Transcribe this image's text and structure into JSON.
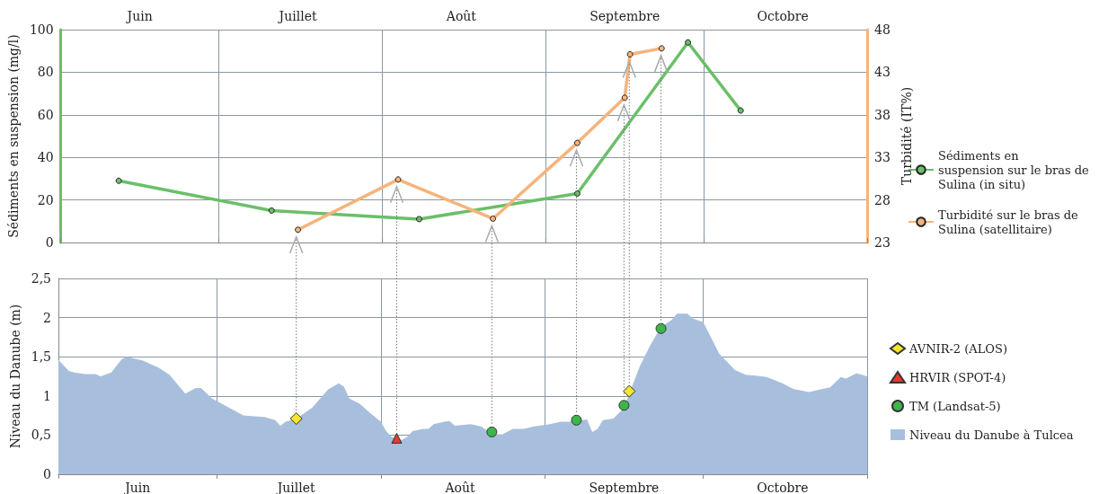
{
  "chart_data": [
    {
      "type": "line",
      "ylabel": "Sédiments en suspension (mg/l)",
      "y2label": "Turbidité (IT%)",
      "xlim": [
        "--06-01",
        "--11-01"
      ],
      "xticks": [
        {
          "value": "--06-01",
          "label": null
        },
        {
          "value": "--06-16",
          "label": "Juin"
        },
        {
          "value": "--07-01",
          "label": null
        },
        {
          "value": "--07-16",
          "label": "Juillet"
        },
        {
          "value": "--08-01",
          "label": null
        },
        {
          "value": "--08-16",
          "label": "Août"
        },
        {
          "value": "--09-01",
          "label": null
        },
        {
          "value": "--09-16",
          "label": "Septembre"
        },
        {
          "value": "--10-01",
          "label": null
        },
        {
          "value": "--10-16",
          "label": "Octobre"
        },
        {
          "value": "--11-01",
          "label": null
        }
      ],
      "ylim": [
        0,
        100
      ],
      "yticks": [
        0,
        20,
        40,
        60,
        80,
        100
      ],
      "y2lim": [
        23,
        48
      ],
      "y2ticks": [
        23,
        28,
        33,
        38,
        43,
        48
      ],
      "grid": true,
      "legend": "right",
      "marker": "circle",
      "series": [
        {
          "name": "Sédiments en suspension sur le bras de Sulina (in situ)",
          "color": "#6abf69",
          "x": [
            "--06-12",
            "--07-11",
            "--08-08",
            "--09-07",
            "--09-28",
            "--10-08"
          ],
          "values": [
            29,
            15,
            11,
            23,
            94,
            62
          ]
        },
        {
          "name": "Turbidité sur le bras de Sulina (satellitaire)",
          "color": "#f5b47c",
          "axis": "y2",
          "x": [
            "--07-16",
            "--08-04",
            "--08-22",
            "--09-07",
            "--09-16",
            "--09-17",
            "--09-23"
          ],
          "values": [
            24.5,
            30.4,
            25.8,
            34.7,
            40.0,
            45.1,
            45.8
          ]
        }
      ]
    },
    {
      "type": "scatter",
      "ylabel": "Niveau du Danube (m)",
      "xlim": [
        "--06-01",
        "--11-01"
      ],
      "xticks": [
        {
          "value": "--06-01",
          "label": null
        },
        {
          "value": "--06-16",
          "label": "Juin"
        },
        {
          "value": "--07-01",
          "label": null
        },
        {
          "value": "--07-16",
          "label": "Juillet"
        },
        {
          "value": "--08-01",
          "label": null
        },
        {
          "value": "--08-16",
          "label": "Août"
        },
        {
          "value": "--09-01",
          "label": null
        },
        {
          "value": "--09-16",
          "label": "Septembre"
        },
        {
          "value": "--10-01",
          "label": null
        },
        {
          "value": "--10-16",
          "label": "Octobre"
        },
        {
          "value": "--11-01",
          "label": null
        }
      ],
      "ylim": [
        0,
        2.5
      ],
      "yticks": [
        0,
        {
          "value": 0.5,
          "label": "0,5"
        },
        1,
        {
          "value": 1.5,
          "label": "1,5"
        },
        2,
        {
          "value": 2.5,
          "label": "2,5"
        }
      ],
      "grid": true,
      "legend": "right",
      "series": [
        {
          "name": "AVNIR-2 (ALOS)",
          "marker": "diamond",
          "color": "#f5e62a",
          "x": [
            "--07-16",
            "--09-17"
          ],
          "values": [
            0.71,
            1.06
          ]
        },
        {
          "name": "HRVIR (SPOT-4)",
          "marker": "triangle",
          "color": "#e53a2a",
          "x": [
            "--08-04"
          ],
          "values": [
            0.46
          ]
        },
        {
          "name": "TM (Landsat-5)",
          "marker": "circle",
          "color": "#3cb54a",
          "x": [
            "--08-22",
            "--09-07",
            "--09-16",
            "--09-23"
          ],
          "values": [
            0.54,
            0.69,
            0.88,
            1.86
          ]
        },
        {
          "name": "Niveau du Danube à Tulcea",
          "type": "area",
          "color": "#a7bfdd",
          "x": [
            "--06-01",
            "--06-03",
            "--06-04",
            "--06-06",
            "--06-08",
            "--06-09",
            "--06-11",
            "--06-13",
            "--06-14",
            "--06-17",
            "--06-20",
            "--06-22",
            "--06-25",
            "--06-27",
            "--06-28",
            "--06-30",
            "--07-03",
            "--07-06",
            "--07-08",
            "--07-10",
            "--07-12",
            "--07-13",
            "--07-14",
            "--07-16",
            "--07-19",
            "--07-22",
            "--07-24",
            "--07-25",
            "--07-26",
            "--07-28",
            "--07-30",
            "--08-01",
            "--08-02",
            "--08-03",
            "--08-05",
            "--08-06",
            "--08-07",
            "--08-09",
            "--08-10",
            "--08-11",
            "--08-13",
            "--08-14",
            "--08-15",
            "--08-18",
            "--08-20",
            "--08-22",
            "--08-24",
            "--08-26",
            "--08-28",
            "--08-30",
            "--09-02",
            "--09-04",
            "--09-06",
            "--09-09",
            "--09-10",
            "--09-11",
            "--09-12",
            "--09-14",
            "--09-16",
            "--09-17",
            "--09-19",
            "--09-21",
            "--09-23",
            "--09-25",
            "--09-26",
            "--09-28",
            "--09-29",
            "--10-01",
            "--10-02",
            "--10-04",
            "--10-07",
            "--10-09",
            "--10-11",
            "--10-13",
            "--10-16",
            "--10-18",
            "--10-21",
            "--10-23",
            "--10-25",
            "--10-27",
            "--10-28",
            "--10-30",
            "--11-01"
          ],
          "values": [
            1.46,
            1.32,
            1.3,
            1.28,
            1.28,
            1.25,
            1.3,
            1.47,
            1.5,
            1.45,
            1.36,
            1.27,
            1.03,
            1.1,
            1.1,
            0.97,
            0.86,
            0.75,
            0.74,
            0.73,
            0.69,
            0.62,
            0.67,
            0.71,
            0.85,
            1.08,
            1.16,
            1.12,
            0.97,
            0.9,
            0.78,
            0.67,
            0.55,
            0.48,
            0.44,
            0.48,
            0.55,
            0.58,
            0.58,
            0.64,
            0.67,
            0.68,
            0.62,
            0.64,
            0.61,
            0.51,
            0.51,
            0.58,
            0.58,
            0.61,
            0.64,
            0.67,
            0.67,
            0.7,
            0.54,
            0.58,
            0.69,
            0.71,
            0.85,
            1.03,
            1.38,
            1.65,
            1.88,
            1.97,
            2.05,
            2.05,
            1.99,
            1.94,
            1.81,
            1.54,
            1.33,
            1.27,
            1.26,
            1.24,
            1.16,
            1.09,
            1.05,
            1.08,
            1.11,
            1.24,
            1.22,
            1.29,
            1.25
          ]
        }
      ]
    }
  ]
}
